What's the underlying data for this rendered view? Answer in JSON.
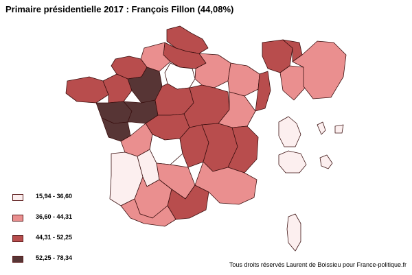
{
  "title": "Primaire présidentielle 2017 : François Fillon (44,08%)",
  "legend": [
    {
      "label": "15,94 - 36,60",
      "color": "#fcefef"
    },
    {
      "label": "36,60 - 44,31",
      "color": "#ea8f8f"
    },
    {
      "label": "44,31 - 52,25",
      "color": "#b84d4d"
    },
    {
      "label": "52,25 - 78,34",
      "color": "#573535"
    }
  ],
  "credit": "Tous droits réservés Laurent de Boissieu pour France-politique.fr",
  "colors": {
    "border": "#3a0f0f",
    "class1": "#fcefef",
    "class2": "#ea8f8f",
    "class3": "#b84d4d",
    "class4": "#573535"
  }
}
